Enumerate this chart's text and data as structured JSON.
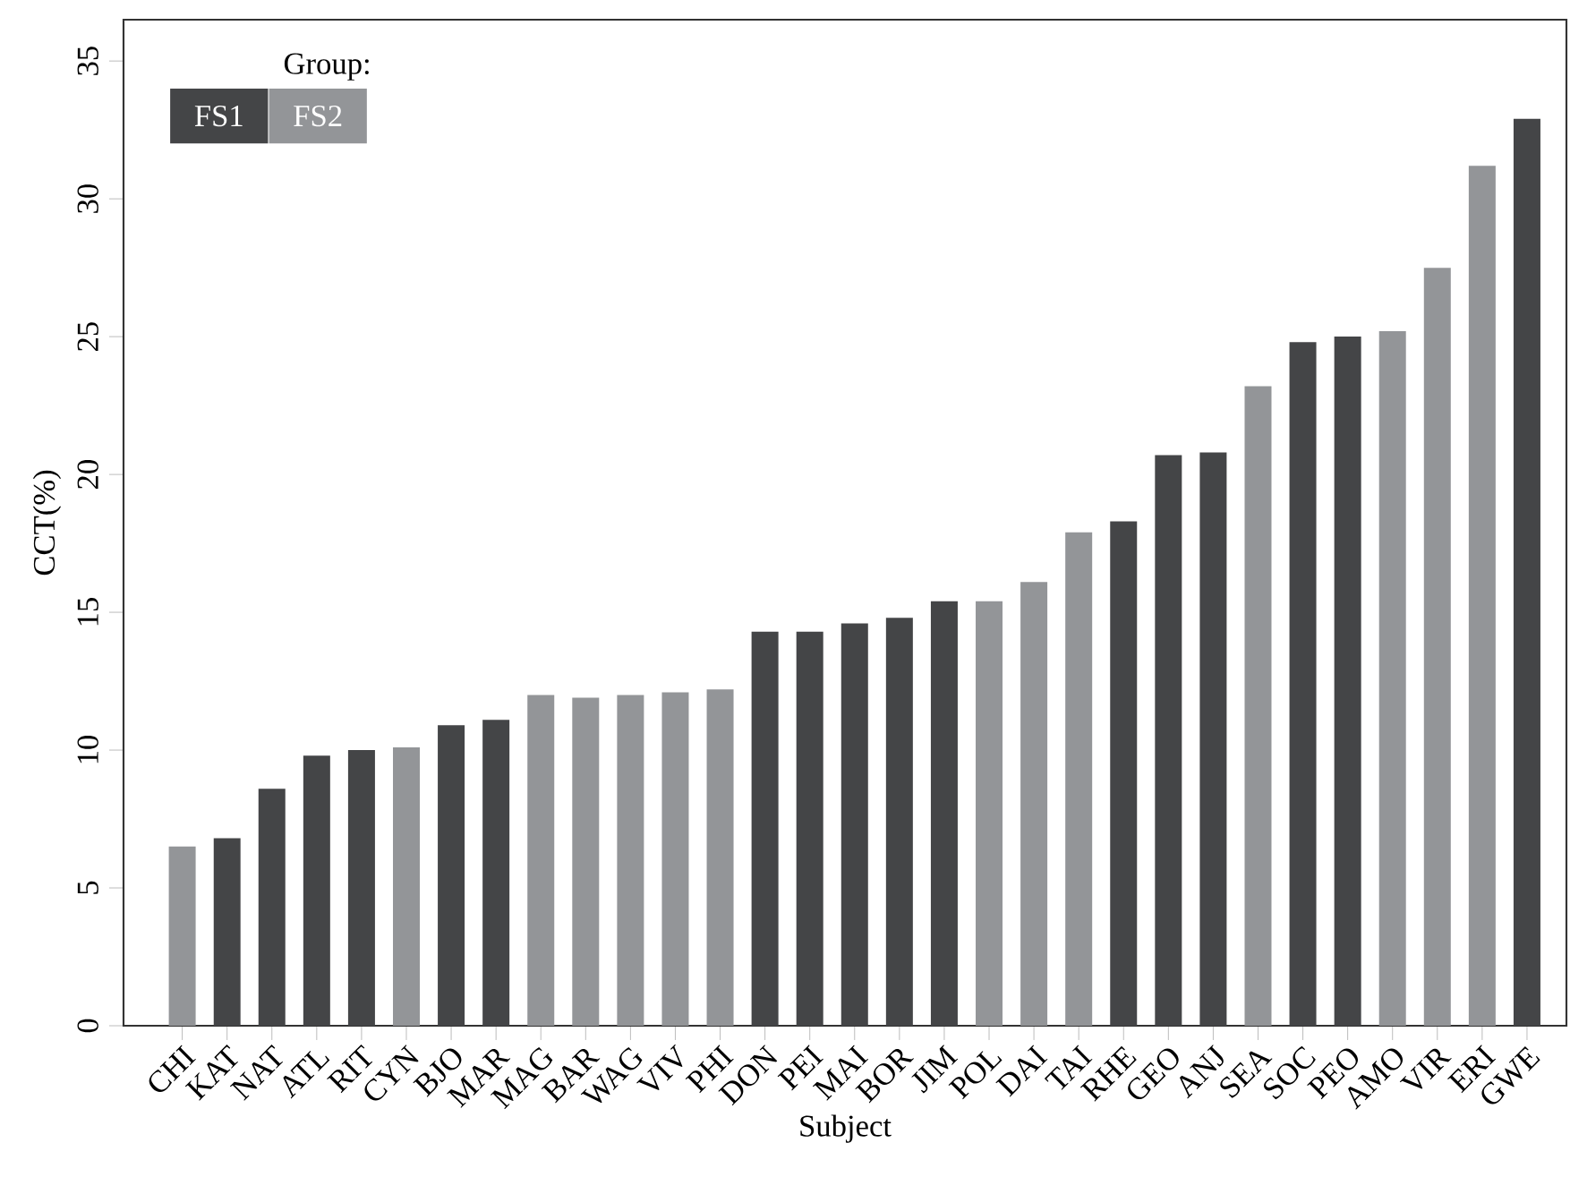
{
  "chart_data": {
    "type": "bar",
    "xlabel": "Subject",
    "ylabel": "CCT(%)",
    "legend_title": "Group:",
    "legend": "top left",
    "categories": [
      "CHI",
      "KAT",
      "NAT",
      "ATL",
      "RIT",
      "CYN",
      "BJO",
      "MAR",
      "MAG",
      "BAR",
      "WAG",
      "VIV",
      "PHI",
      "DON",
      "PEI",
      "MAI",
      "BOR",
      "JIM",
      "POL",
      "DAI",
      "TAI",
      "RHE",
      "GEO",
      "ANJ",
      "SEA",
      "SOC",
      "PEO",
      "AMO",
      "VIR",
      "ERI",
      "GWE"
    ],
    "series": [
      {
        "name": "FS1",
        "color": "#444547",
        "values": [
          null,
          6.8,
          8.6,
          9.8,
          10.0,
          null,
          10.9,
          11.1,
          null,
          null,
          null,
          null,
          null,
          14.3,
          14.3,
          14.6,
          14.8,
          15.4,
          null,
          null,
          null,
          18.3,
          20.7,
          20.8,
          null,
          24.8,
          25.0,
          null,
          null,
          null,
          32.9
        ]
      },
      {
        "name": "FS2",
        "color": "#939598",
        "values": [
          6.5,
          null,
          null,
          null,
          null,
          10.1,
          null,
          null,
          12.0,
          11.9,
          12.0,
          12.1,
          12.2,
          null,
          null,
          null,
          null,
          null,
          15.4,
          16.1,
          17.9,
          null,
          null,
          null,
          23.2,
          null,
          null,
          25.2,
          27.5,
          31.2,
          null
        ]
      }
    ],
    "ylim": [
      0,
      36.5
    ],
    "yticks": [
      0,
      5,
      10,
      15,
      20,
      25,
      30,
      35
    ],
    "grid": false
  }
}
